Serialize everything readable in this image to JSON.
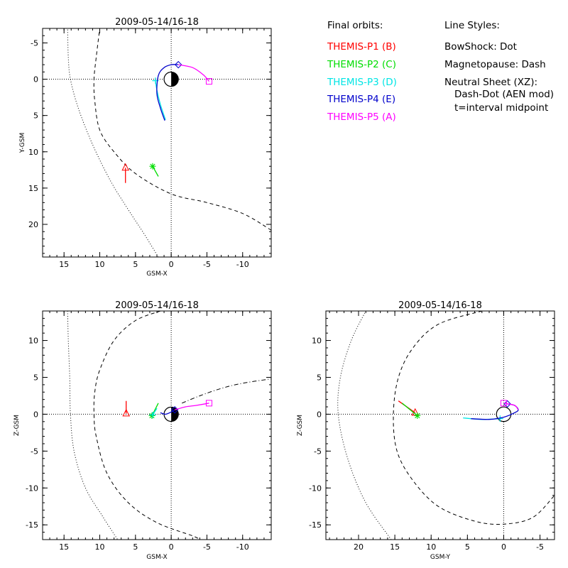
{
  "legend": {
    "orbits_title": "Final orbits:",
    "probes": [
      {
        "label": "THEMIS-P1 (B)",
        "color": "#ff0000"
      },
      {
        "label": "THEMIS-P2 (C)",
        "color": "#00dd00"
      },
      {
        "label": "THEMIS-P3 (D)",
        "color": "#00e5e5"
      },
      {
        "label": "THEMIS-P4 (E)",
        "color": "#0000cc"
      },
      {
        "label": "THEMIS-P5 (A)",
        "color": "#ff00ff"
      }
    ],
    "styles_title": "Line Styles:",
    "styles": [
      "BowShock: Dot",
      "Magnetopause: Dash",
      "Neutral Sheet (XZ):",
      "Dash-Dot (AEN mod)",
      "t=interval midpoint"
    ]
  },
  "chart_data": [
    {
      "id": "xy",
      "type": "line",
      "title": "2009-05-14/16-18",
      "xlabel": "GSM-X",
      "ylabel": "Y-GSM",
      "xlim": [
        18,
        -14
      ],
      "ylim": [
        -7,
        24.5
      ],
      "xticks": [
        15,
        10,
        5,
        0,
        -5,
        -10
      ],
      "yticks": [
        -5,
        0,
        5,
        10,
        15,
        20
      ],
      "bow_shock": [
        [
          1.8,
          24.5
        ],
        [
          4,
          21
        ],
        [
          6,
          18
        ],
        [
          8.5,
          14
        ],
        [
          11,
          9
        ],
        [
          13,
          4
        ],
        [
          14.1,
          0
        ],
        [
          14.4,
          -3
        ],
        [
          14.5,
          -7
        ]
      ],
      "magnetopause": [
        [
          -14,
          20.8
        ],
        [
          -10,
          18.5
        ],
        [
          -5,
          17
        ],
        [
          0,
          15.8
        ],
        [
          5,
          13
        ],
        [
          8,
          10
        ],
        [
          10,
          7
        ],
        [
          10.7,
          3
        ],
        [
          10.8,
          0
        ],
        [
          10.5,
          -3
        ],
        [
          10,
          -7
        ]
      ],
      "series": [
        {
          "name": "THEMIS-P1 (B)",
          "color": "#ff0000",
          "points": [
            [
              6.4,
              14.3
            ],
            [
              6.4,
              12.2
            ]
          ],
          "marker": "triangle"
        },
        {
          "name": "THEMIS-P2 (C)",
          "color": "#00dd00",
          "points": [
            [
              1.8,
              13.4
            ],
            [
              2.6,
              12.0
            ]
          ],
          "marker": "asterisk"
        },
        {
          "name": "THEMIS-P3 (D)",
          "color": "#00e5e5",
          "points": [
            [
              0.8,
              5.6
            ],
            [
              1.5,
              3.5
            ],
            [
              2.0,
              1.5
            ],
            [
              2.2,
              0.2
            ]
          ],
          "marker": "plus"
        },
        {
          "name": "THEMIS-P4 (E)",
          "color": "#0000cc",
          "points": [
            [
              0.9,
              5.7
            ],
            [
              1.5,
              4.0
            ],
            [
              2.0,
              2.0
            ],
            [
              1.8,
              -0.5
            ],
            [
              1.0,
              -1.6
            ],
            [
              0.0,
              -2.0
            ],
            [
              -1.0,
              -2.0
            ]
          ],
          "marker": "diamond"
        },
        {
          "name": "THEMIS-P5 (A)",
          "color": "#ff00ff",
          "points": [
            [
              -1.0,
              -2.0
            ],
            [
              -3.0,
              -1.6
            ],
            [
              -4.5,
              -0.6
            ],
            [
              -5.3,
              0.3
            ]
          ],
          "marker": "square"
        }
      ]
    },
    {
      "id": "xz",
      "type": "line",
      "title": "2009-05-14/16-18",
      "xlabel": "GSM-X",
      "ylabel": "Z-GSM",
      "xlim": [
        18,
        -14
      ],
      "ylim": [
        -17,
        14
      ],
      "xticks": [
        15,
        10,
        5,
        0,
        -5,
        -10
      ],
      "yticks": [
        -15,
        -10,
        -5,
        0,
        5,
        10
      ],
      "bow_shock": [
        [
          14.5,
          14
        ],
        [
          14.4,
          10
        ],
        [
          14.2,
          5
        ],
        [
          14.1,
          0
        ],
        [
          13.6,
          -5
        ],
        [
          12,
          -10
        ],
        [
          9.5,
          -14
        ],
        [
          7.5,
          -17
        ]
      ],
      "magnetopause": [
        [
          1.5,
          14
        ],
        [
          5,
          12.7
        ],
        [
          8,
          10
        ],
        [
          10,
          6
        ],
        [
          10.7,
          3
        ],
        [
          10.8,
          0
        ],
        [
          10.5,
          -3
        ],
        [
          9,
          -8
        ],
        [
          6,
          -12
        ],
        [
          2,
          -14.7
        ],
        [
          -3,
          -16.5
        ],
        [
          -4,
          -17
        ]
      ],
      "neutral_sheet": [
        [
          -1.5,
          1.5
        ],
        [
          -4,
          2.5
        ],
        [
          -7,
          3.5
        ],
        [
          -10,
          4.2
        ],
        [
          -14,
          4.8
        ]
      ],
      "series": [
        {
          "name": "THEMIS-P1 (B)",
          "color": "#ff0000",
          "points": [
            [
              6.3,
              1.8
            ],
            [
              6.3,
              0.1
            ]
          ],
          "marker": "triangle"
        },
        {
          "name": "THEMIS-P2 (C)",
          "color": "#00dd00",
          "points": [
            [
              1.8,
              1.5
            ],
            [
              2.7,
              -0.2
            ]
          ],
          "marker": "asterisk"
        },
        {
          "name": "THEMIS-P3 (D)",
          "color": "#00e5e5",
          "points": [
            [
              2.0,
              0.8
            ],
            [
              2.6,
              -0.1
            ]
          ],
          "marker": "plus"
        },
        {
          "name": "THEMIS-P4 (E)",
          "color": "#0000cc",
          "points": [
            [
              1.5,
              0.2
            ],
            [
              0.8,
              0.0
            ],
            [
              0.0,
              0.3
            ],
            [
              -0.5,
              0.6
            ]
          ],
          "marker": "diamond"
        },
        {
          "name": "THEMIS-P5 (A)",
          "color": "#ff00ff",
          "points": [
            [
              -0.5,
              0.6
            ],
            [
              -2.0,
              1.0
            ],
            [
              -3.5,
              1.2
            ],
            [
              -5.3,
              1.5
            ]
          ],
          "marker": "square"
        }
      ]
    },
    {
      "id": "yz",
      "type": "line",
      "title": "2009-05-14/16-18",
      "xlabel": "GSM-Y",
      "ylabel": "Z-GSM",
      "xlim": [
        24.5,
        -7
      ],
      "ylim": [
        -17,
        14
      ],
      "xticks": [
        20,
        15,
        10,
        5,
        0,
        -5
      ],
      "yticks": [
        -15,
        -10,
        -5,
        0,
        5,
        10
      ],
      "bow_shock": [
        [
          15.5,
          -17
        ],
        [
          19,
          -12
        ],
        [
          21.5,
          -6
        ],
        [
          22.8,
          0
        ],
        [
          22.5,
          5
        ],
        [
          21,
          10
        ],
        [
          19,
          14
        ]
      ],
      "magnetopause": [
        [
          3,
          14
        ],
        [
          9,
          12.2
        ],
        [
          12.5,
          9
        ],
        [
          14.5,
          5
        ],
        [
          15.2,
          0
        ],
        [
          14.7,
          -5
        ],
        [
          12.5,
          -9
        ],
        [
          9,
          -12.5
        ],
        [
          4,
          -14.5
        ],
        [
          0,
          -14.9
        ],
        [
          -4,
          -14
        ],
        [
          -7,
          -11
        ]
      ],
      "series": [
        {
          "name": "THEMIS-P1 (B)",
          "color": "#ff0000",
          "points": [
            [
              14.5,
              1.8
            ],
            [
              12.2,
              0.2
            ]
          ],
          "marker": "triangle"
        },
        {
          "name": "THEMIS-P2 (C)",
          "color": "#00dd00",
          "points": [
            [
              14.0,
              1.5
            ],
            [
              11.9,
              -0.2
            ]
          ],
          "marker": "asterisk"
        },
        {
          "name": "THEMIS-P3 (D)",
          "color": "#00e5e5",
          "points": [
            [
              5.6,
              -0.5
            ],
            [
              3.0,
              -0.7
            ],
            [
              0.5,
              -0.6
            ]
          ],
          "marker": "plus"
        },
        {
          "name": "THEMIS-P4 (E)",
          "color": "#0000cc",
          "points": [
            [
              4.5,
              -0.6
            ],
            [
              2.0,
              -0.7
            ],
            [
              0.0,
              -0.4
            ],
            [
              -1.5,
              0.2
            ],
            [
              -2.0,
              0.6
            ],
            [
              -1.5,
              1.2
            ],
            [
              -0.5,
              1.4
            ]
          ],
          "marker": "diamond"
        },
        {
          "name": "THEMIS-P5 (A)",
          "color": "#ff00ff",
          "points": [
            [
              -2.0,
              0.6
            ],
            [
              -1.5,
              1.2
            ],
            [
              0.0,
              1.5
            ]
          ],
          "marker": "square"
        }
      ]
    }
  ]
}
